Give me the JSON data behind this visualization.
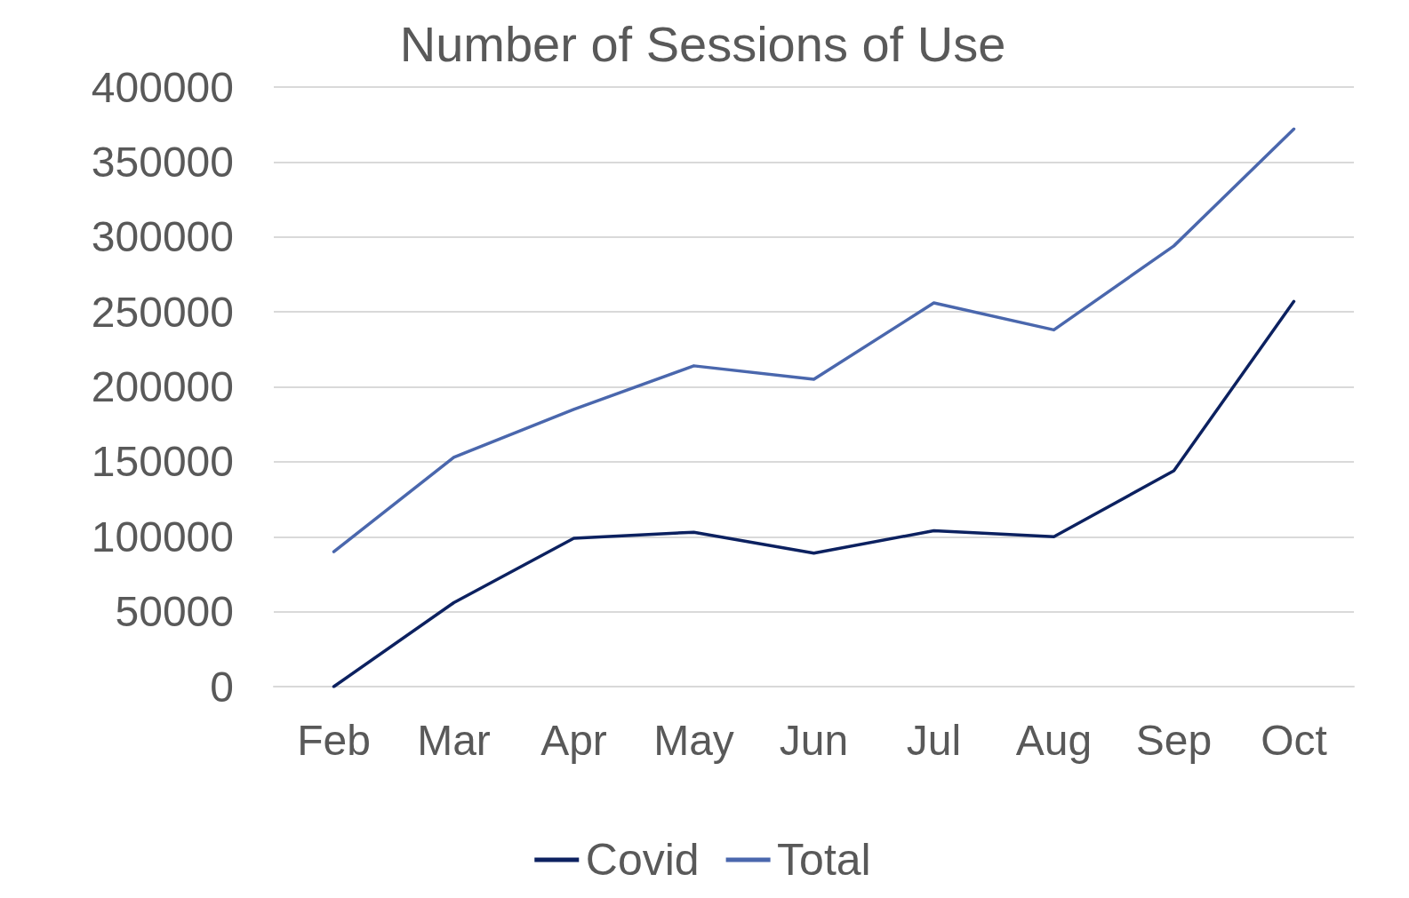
{
  "chart_data": {
    "type": "line",
    "title": "Number of Sessions of Use",
    "categories": [
      "Feb",
      "Mar",
      "Apr",
      "May",
      "Jun",
      "Jul",
      "Aug",
      "Sep",
      "Oct"
    ],
    "series": [
      {
        "name": "Covid",
        "color": "#0c2160",
        "values": [
          0,
          56000,
          99000,
          103000,
          89000,
          104000,
          100000,
          144000,
          257000
        ]
      },
      {
        "name": "Total",
        "color": "#4a67ad",
        "values": [
          90000,
          153000,
          185000,
          214000,
          205000,
          256000,
          238000,
          294000,
          372000
        ]
      }
    ],
    "ylim": [
      0,
      400000
    ],
    "yticks": [
      0,
      50000,
      100000,
      150000,
      200000,
      250000,
      300000,
      350000,
      400000
    ],
    "grid": "y",
    "legend": "bottom",
    "marker": "none",
    "line_style": "solid"
  }
}
